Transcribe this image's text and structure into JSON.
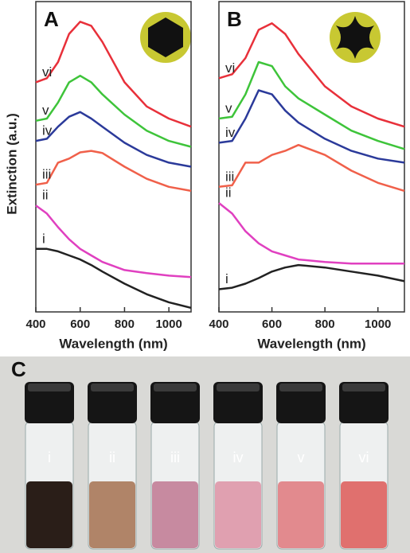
{
  "chart_data": [
    {
      "type": "line",
      "panel": "A",
      "ylabel": "Extinction (a.u.)",
      "xlabel": "Wavelength (nm)",
      "x": [
        400,
        450,
        500,
        550,
        600,
        650,
        700,
        800,
        900,
        1000,
        1100
      ],
      "xlim": [
        400,
        1100
      ],
      "xticks": [
        400,
        600,
        800,
        1000
      ],
      "ylim": [
        0,
        100
      ],
      "series": [
        {
          "name": "vi",
          "color": "#e8303a",
          "values": [
            74.0,
            75.3,
            80.5,
            89.6,
            93.5,
            92.2,
            87.0,
            74.0,
            66.2,
            62.3,
            59.7
          ]
        },
        {
          "name": "v",
          "color": "#3ec43a",
          "values": [
            61.6,
            62.3,
            67.5,
            74.0,
            76.1,
            74.0,
            70.1,
            63.6,
            58.4,
            55.1,
            53.2
          ]
        },
        {
          "name": "iv",
          "color": "#2b3a9a",
          "values": [
            55.1,
            55.8,
            59.7,
            62.9,
            64.4,
            62.3,
            59.7,
            54.5,
            50.6,
            48.1,
            46.8
          ]
        },
        {
          "name": "iii",
          "color": "#f0604a",
          "values": [
            41.0,
            41.6,
            48.1,
            49.4,
            51.4,
            51.9,
            51.2,
            46.8,
            42.9,
            40.3,
            39.0
          ]
        },
        {
          "name": "ii",
          "color": "#e040c0",
          "values": [
            34.3,
            31.7,
            27.3,
            23.4,
            20.3,
            18.2,
            16.1,
            13.5,
            12.5,
            11.7,
            11.2
          ]
        },
        {
          "name": "i",
          "color": "#222222",
          "values": [
            20.3,
            20.3,
            19.5,
            18.2,
            16.9,
            15.1,
            13.0,
            9.1,
            5.7,
            3.1,
            1.3
          ]
        }
      ]
    },
    {
      "type": "line",
      "panel": "B",
      "xlabel": "Wavelength (nm)",
      "x": [
        400,
        450,
        500,
        550,
        600,
        650,
        700,
        800,
        900,
        1000,
        1100
      ],
      "xlim": [
        400,
        1100
      ],
      "xticks": [
        400,
        600,
        800,
        1000
      ],
      "ylim": [
        0,
        100
      ],
      "series": [
        {
          "name": "vi",
          "color": "#e8303a",
          "values": [
            75.3,
            76.6,
            81.8,
            90.9,
            93.0,
            89.6,
            83.1,
            72.7,
            66.2,
            62.3,
            59.7
          ]
        },
        {
          "name": "v",
          "color": "#3ec43a",
          "values": [
            62.3,
            62.9,
            70.1,
            80.5,
            79.2,
            72.7,
            68.8,
            63.6,
            58.4,
            55.1,
            52.5
          ]
        },
        {
          "name": "iv",
          "color": "#2b3a9a",
          "values": [
            54.5,
            55.1,
            62.3,
            71.4,
            70.1,
            64.9,
            61.0,
            55.8,
            51.9,
            49.4,
            48.1
          ]
        },
        {
          "name": "iii",
          "color": "#f0604a",
          "values": [
            40.3,
            40.8,
            48.1,
            48.1,
            50.6,
            51.9,
            53.8,
            50.6,
            45.5,
            41.6,
            39.0
          ]
        },
        {
          "name": "ii",
          "color": "#e040c0",
          "values": [
            35.1,
            31.7,
            26.0,
            22.1,
            19.5,
            18.2,
            16.9,
            16.1,
            15.6,
            15.6,
            15.6
          ]
        },
        {
          "name": "i",
          "color": "#222222",
          "values": [
            7.3,
            7.8,
            9.1,
            10.9,
            13.0,
            14.3,
            15.1,
            14.3,
            13.0,
            11.7,
            9.9
          ]
        }
      ]
    }
  ],
  "photo": {
    "panel": "C",
    "vials": [
      "i",
      "ii",
      "iii",
      "iv",
      "v",
      "vi"
    ]
  }
}
